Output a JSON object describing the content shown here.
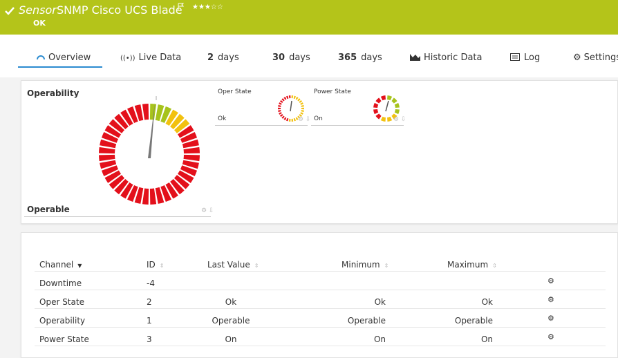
{
  "header": {
    "prefix": "Sensor",
    "title": "SNMP Cisco UCS Blade",
    "status": "OK"
  },
  "tabs": [
    {
      "label": "Overview"
    },
    {
      "label": "Live Data"
    },
    {
      "count": "2",
      "unit": "days"
    },
    {
      "count": "30",
      "unit": "days"
    },
    {
      "count": "365",
      "unit": "days"
    },
    {
      "label": "Historic Data"
    },
    {
      "label": "Log"
    },
    {
      "label": "Settings"
    }
  ],
  "gauges": [
    {
      "title": "Operability",
      "value": "Operable"
    },
    {
      "title": "Oper State",
      "value": "Ok"
    },
    {
      "title": "Power State",
      "value": "On"
    }
  ],
  "table": {
    "columns": [
      "Channel",
      "ID",
      "Last Value",
      "Minimum",
      "Maximum"
    ],
    "rows": [
      {
        "channel": "Downtime",
        "id": -4
      },
      {
        "channel": "Oper State",
        "id": 2,
        "last": "Ok",
        "min": "Ok",
        "max": "Ok"
      },
      {
        "channel": "Operability",
        "id": 1,
        "last": "Operable",
        "min": "Operable",
        "max": "Operable"
      },
      {
        "channel": "Power State",
        "id": 3,
        "last": "On",
        "min": "On",
        "max": "On"
      }
    ]
  }
}
